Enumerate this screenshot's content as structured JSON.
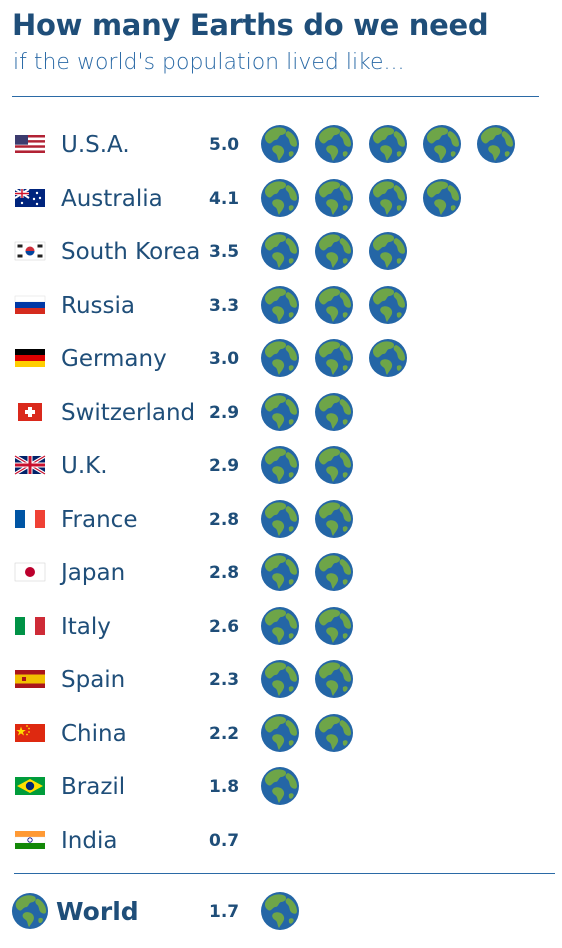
{
  "title": "How many Earths do we need",
  "subtitle": "if the world's population lived like...",
  "colors": {
    "title": "#1f4e79",
    "ocean": "#2466a6",
    "land": "#6ea548",
    "rule": "#2b6aa6"
  },
  "chart_data": {
    "type": "bar",
    "categories": [
      "U.S.A.",
      "Australia",
      "South Korea",
      "Russia",
      "Germany",
      "Switzerland",
      "U.K.",
      "France",
      "Japan",
      "Italy",
      "Spain",
      "China",
      "Brazil",
      "India"
    ],
    "values": [
      5.0,
      4.1,
      3.5,
      3.3,
      3.0,
      2.9,
      2.9,
      2.8,
      2.8,
      2.6,
      2.3,
      2.2,
      1.8,
      0.7
    ],
    "value_labels": [
      "5.0",
      "4.1",
      "3.5",
      "3.3",
      "3.0",
      "2.9",
      "2.9",
      "2.8",
      "2.8",
      "2.6",
      "2.3",
      "2.2",
      "1.8",
      "0.7"
    ],
    "flags": [
      "usa-flag",
      "australia-flag",
      "south-korea-flag",
      "russia-flag",
      "germany-flag",
      "switzerland-flag",
      "uk-flag",
      "france-flag",
      "japan-flag",
      "italy-flag",
      "spain-flag",
      "china-flag",
      "brazil-flag",
      "india-flag"
    ],
    "unit_icon": "earth-globe-icon",
    "world": {
      "label": "World",
      "value": 1.7,
      "value_label": "1.7"
    }
  }
}
